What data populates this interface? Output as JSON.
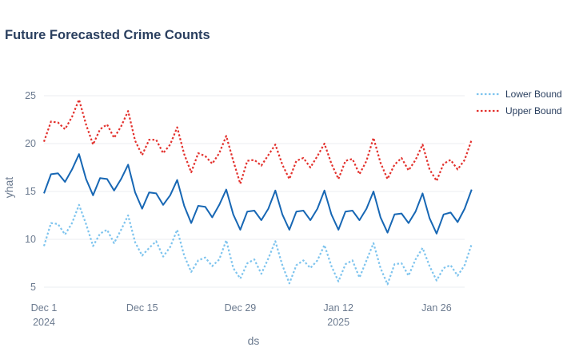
{
  "chart_data": {
    "type": "line",
    "title": "Future Forecasted Crime Counts",
    "xlabel": "ds",
    "ylabel": "yhat",
    "x_ticks": [
      {
        "date": "2024-12-01",
        "label": "Dec 1",
        "sublabel": "2024"
      },
      {
        "date": "2024-12-15",
        "label": "Dec 15",
        "sublabel": ""
      },
      {
        "date": "2024-12-29",
        "label": "Dec 29",
        "sublabel": ""
      },
      {
        "date": "2025-01-12",
        "label": "Jan 12",
        "sublabel": "2025"
      },
      {
        "date": "2025-01-26",
        "label": "Jan 26",
        "sublabel": ""
      }
    ],
    "y_ticks": [
      5,
      10,
      15,
      20,
      25
    ],
    "xlim": [
      "2024-12-01",
      "2025-01-30"
    ],
    "ylim": [
      4,
      27
    ],
    "grid": true,
    "legend_position": "top-right",
    "x_start_date": "2024-12-01",
    "series": [
      {
        "name": "",
        "color": "#1767b4",
        "dash": "solid",
        "in_legend": false,
        "values": [
          14.8,
          16.8,
          16.9,
          16.0,
          17.3,
          18.9,
          16.3,
          14.6,
          16.4,
          16.3,
          15.1,
          16.3,
          17.8,
          14.9,
          13.2,
          14.9,
          14.8,
          13.6,
          14.6,
          16.2,
          13.5,
          11.7,
          13.5,
          13.4,
          12.3,
          13.6,
          15.2,
          12.6,
          11.0,
          12.9,
          13.0,
          12.0,
          13.2,
          15.1,
          12.6,
          11.0,
          12.9,
          13.0,
          12.0,
          13.2,
          15.1,
          12.6,
          11.0,
          12.9,
          13.0,
          12.0,
          13.2,
          15.0,
          12.3,
          10.7,
          12.6,
          12.7,
          11.7,
          12.9,
          14.8,
          12.2,
          10.6,
          12.6,
          12.8,
          11.8,
          13.2,
          15.2
        ]
      },
      {
        "name": "Lower Bound",
        "color": "#7ec4ee",
        "dash": "dot",
        "in_legend": true,
        "values": [
          9.3,
          11.7,
          11.6,
          10.5,
          11.7,
          13.6,
          11.6,
          9.3,
          10.6,
          11.0,
          9.6,
          11.0,
          12.5,
          9.7,
          8.3,
          9.1,
          9.8,
          8.2,
          9.2,
          11.0,
          8.3,
          6.6,
          7.8,
          8.1,
          7.2,
          7.9,
          9.9,
          7.0,
          5.9,
          7.5,
          7.9,
          6.4,
          8.0,
          9.8,
          7.3,
          5.4,
          7.3,
          7.8,
          7.0,
          7.8,
          9.4,
          7.2,
          5.6,
          7.4,
          7.8,
          6.0,
          7.8,
          9.6,
          7.0,
          5.3,
          7.4,
          7.5,
          6.2,
          7.9,
          9.1,
          7.2,
          5.7,
          7.0,
          7.3,
          6.2,
          7.3,
          9.5
        ]
      },
      {
        "name": "Upper Bound",
        "color": "#e3312d",
        "dash": "dot",
        "in_legend": true,
        "values": [
          20.2,
          22.3,
          22.2,
          21.5,
          22.8,
          24.6,
          22.0,
          19.9,
          21.5,
          22.0,
          20.6,
          21.8,
          23.4,
          20.3,
          18.8,
          20.4,
          20.4,
          19.0,
          19.9,
          21.7,
          18.9,
          17.0,
          19.0,
          18.7,
          17.9,
          19.0,
          20.8,
          18.2,
          15.8,
          18.2,
          18.3,
          17.7,
          18.8,
          19.9,
          17.8,
          16.3,
          18.2,
          18.5,
          17.5,
          18.7,
          20.0,
          17.9,
          16.3,
          18.2,
          18.4,
          16.8,
          18.2,
          20.6,
          18.0,
          16.3,
          17.8,
          18.5,
          17.2,
          18.3,
          19.9,
          17.3,
          16.1,
          17.9,
          18.3,
          17.3,
          18.3,
          20.4
        ]
      }
    ]
  }
}
